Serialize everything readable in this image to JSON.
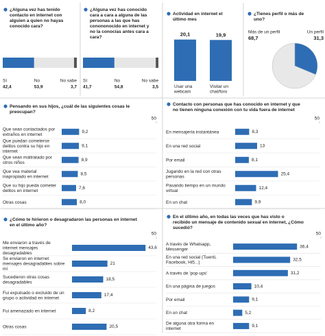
{
  "chart_data": [
    {
      "type": "stacked",
      "title": "¿Alguna vez has tenido contacto en internet con alguien a quien no hayas conocido cara?",
      "xlim": [
        0,
        100
      ],
      "series": [
        {
          "name": "Sí",
          "color": "#2e6db4",
          "values": [
            42.4
          ],
          "value_labels": [
            "42,4"
          ]
        },
        {
          "name": "No",
          "color": "#e6e6e6",
          "values": [
            53.9
          ],
          "value_labels": [
            "53,9"
          ]
        },
        {
          "name": "No sabe",
          "color": "#555555",
          "values": [
            3.7
          ],
          "value_labels": [
            "3,7"
          ]
        }
      ]
    },
    {
      "type": "stacked",
      "title": "¿Alguna vez has conocido cara a cara a alguna de las personas a las que has conononocido en internet y no la conocías antes cara a cara?",
      "xlim": [
        0,
        100
      ],
      "series": [
        {
          "name": "Sí",
          "color": "#2e6db4",
          "values": [
            41.7
          ],
          "value_labels": [
            "41,7"
          ]
        },
        {
          "name": "No",
          "color": "#e6e6e6",
          "values": [
            54.8
          ],
          "value_labels": [
            "54,8"
          ]
        },
        {
          "name": "No sabe",
          "color": "#555555",
          "values": [
            3.5
          ],
          "value_labels": [
            "3,5"
          ]
        }
      ]
    },
    {
      "type": "column",
      "title": "Actividad en internet el último mes",
      "categories": [
        "Usar una webcam",
        "Visitar un chat/foro"
      ],
      "values": [
        20.1,
        19.9
      ],
      "value_labels": [
        "20,1",
        "19,9"
      ],
      "color": "#2e6db4",
      "ylim": [
        0,
        22
      ]
    },
    {
      "type": "pie",
      "title": "¿Tienes perfil o más de uno?",
      "categories": [
        "Más de un perfil",
        "Un perfil"
      ],
      "values": [
        68.7,
        31.3
      ],
      "value_labels": [
        "68,7",
        "31,3"
      ],
      "colors": [
        "#e8e8e8",
        "#2e6db4"
      ]
    },
    {
      "type": "hbar",
      "title": "Pensando en sus hijos, ¿cuál de las siguientes cosas le preocupan?",
      "categories": [
        "Que sean contactados por extraños en internet",
        "Que puedan cometerse delitos contra su hijo en internet",
        "Que sean maltratado por otros niños",
        "Que vea material inapropiado en internet",
        "Que su hijo pueda cometer delitos en internet",
        "Otras cosas"
      ],
      "values": [
        9.2,
        9.1,
        8.9,
        8.5,
        7.6,
        8.0
      ],
      "value_labels": [
        "9,2",
        "9,1",
        "8,9",
        "8,5",
        "7,6",
        "8,0"
      ],
      "color": "#2e6db4",
      "xlim": [
        0,
        50
      ],
      "xticks": [
        50
      ]
    },
    {
      "type": "hbar",
      "title": "Contacto con personas que has conocido en internet y que no tienen ninguna conexión con tu vida fuera de internet",
      "categories": [
        "En mensajería instantánea",
        "En una red social",
        "Por email",
        "Jugando en la red con otras personas",
        "Pasando tiempo en un mundo virtual",
        "En un chat"
      ],
      "values": [
        8.3,
        13,
        8.1,
        25.4,
        12.4,
        9.9
      ],
      "value_labels": [
        "8,3",
        "13",
        "8,1",
        "25,4",
        "12,4",
        "9,9"
      ],
      "color": "#2e6db4",
      "xlim": [
        0,
        50
      ],
      "xticks": [
        50
      ]
    },
    {
      "type": "hbar",
      "title": "¿Cómo te hirieron o desagradaron las personas en internet en el último año?",
      "categories": [
        "Me enviaron a través de internet mensajes desagradables",
        "Se enviaron en internet mensajes desagradables sobre mí",
        "Sucedieron otras cosas desagradables",
        "Fui expulsado o excluido de un grupo o actividad en internet",
        "Fui amenazado en internet",
        "Otras cosas"
      ],
      "values": [
        43.6,
        21,
        18.5,
        17.4,
        8.2,
        20.5
      ],
      "value_labels": [
        "43,6",
        "21",
        "18,5",
        "17,4",
        "8,2",
        "20,5"
      ],
      "color": "#2e6db4",
      "xlim": [
        0,
        50
      ],
      "xticks": [
        50
      ]
    },
    {
      "type": "hbar",
      "title": "En el último año, en todas las veces que has visto o recibido un mensaje de contenido sexual en internet, ¿Cómo sucedió?",
      "categories": [
        "A través de Whatsapp, Messenger",
        "En una red social (Tuenti, Facebook, Hi5...)",
        "A través de 'pop-ups'",
        "En una página de juegos",
        "Por email",
        "En un chat",
        "De alguna otra forma en internet"
      ],
      "values": [
        36.4,
        32.5,
        31.2,
        10.4,
        9.1,
        5.2,
        9.1
      ],
      "value_labels": [
        "36,4",
        "32,5",
        "31,2",
        "10,4",
        "9,1",
        "5,2",
        "9,1"
      ],
      "color": "#2e6db4",
      "xlim": [
        0,
        50
      ],
      "xticks": [
        50
      ]
    }
  ]
}
